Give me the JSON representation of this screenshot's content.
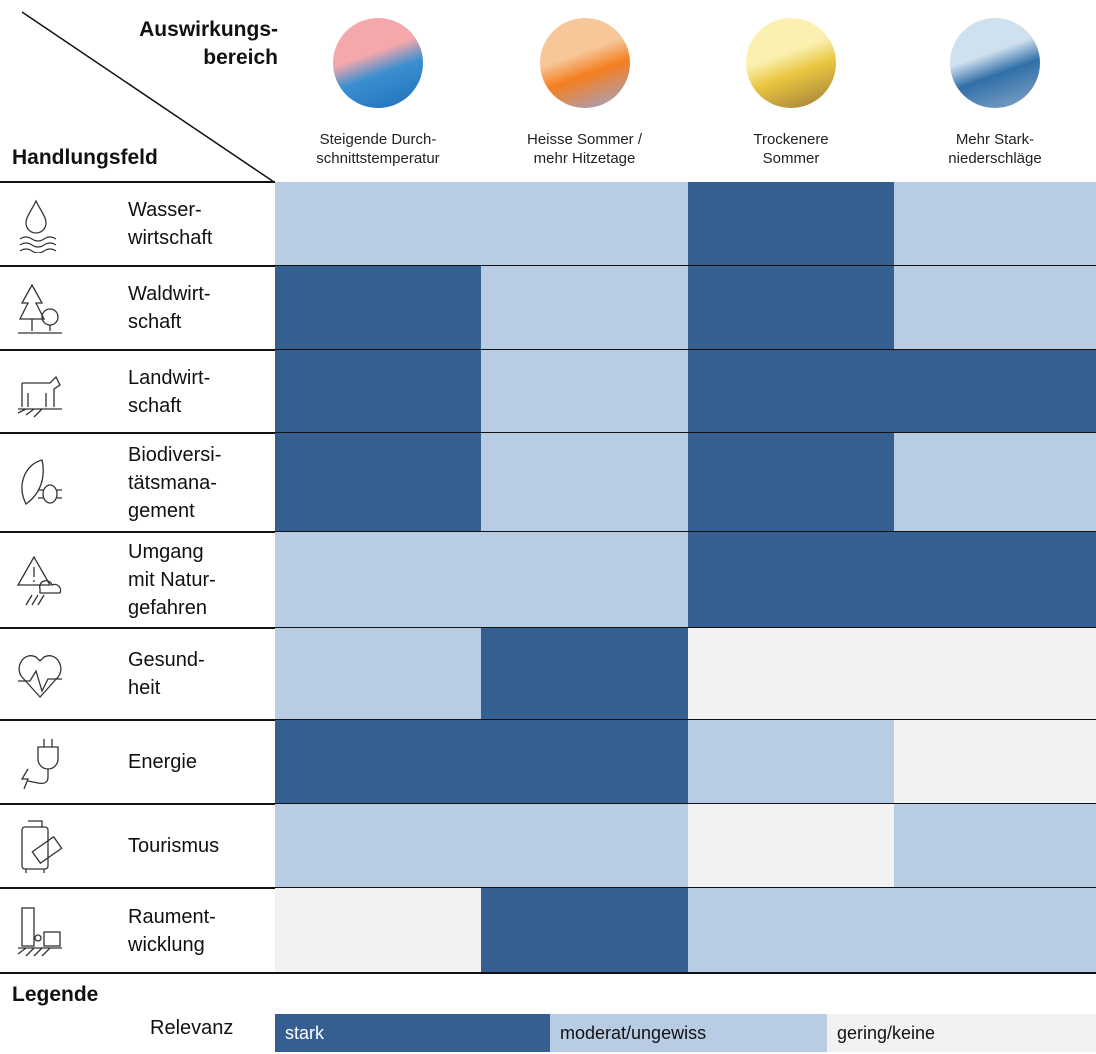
{
  "header": {
    "column_axis": [
      "Auswirkungs-",
      "bereich"
    ],
    "row_axis": "Handlungsfeld"
  },
  "columns": [
    {
      "label": [
        "Steigende Durch-",
        "schnittstemperatur"
      ]
    },
    {
      "label": [
        "Heisse Sommer /",
        "mehr Hitzetage"
      ]
    },
    {
      "label": [
        "Trockenere",
        "Sommer"
      ]
    },
    {
      "label": [
        "Mehr Stark-",
        "niederschläge"
      ]
    }
  ],
  "rows": [
    {
      "label": [
        "Wasser-",
        "wirtschaft"
      ],
      "cells": [
        "#b8cce4",
        "#b8cce4",
        "#365f91",
        "#b8cce4"
      ]
    },
    {
      "label": [
        "Waldwirt-",
        "schaft"
      ],
      "cells": [
        "#365f91",
        "#b8cce4",
        "#365f91",
        "#b8cce4"
      ]
    },
    {
      "label": [
        "Landwirt-",
        "schaft"
      ],
      "cells": [
        "#365f91",
        "#b8cce4",
        "#365f91",
        "#365f91"
      ]
    },
    {
      "label": [
        "Biodiversi-",
        "tätsmana-",
        "gement"
      ],
      "cells": [
        "#365f91",
        "#b8cce4",
        "#365f91",
        "#b8cce4"
      ]
    },
    {
      "label": [
        "Umgang",
        "mit Natur-",
        "gefahren"
      ],
      "cells": [
        "#b8cce4",
        "#b8cce4",
        "#365f91",
        "#365f91"
      ]
    },
    {
      "label": [
        "Gesund-",
        "heit"
      ],
      "cells": [
        "#b8cce4",
        "#365f91",
        "#f2f2f2",
        "#f2f2f2"
      ]
    },
    {
      "label": [
        "Energie"
      ],
      "cells": [
        "#365f91",
        "#365f91",
        "#b8cce4",
        "#f2f2f2"
      ]
    },
    {
      "label": [
        "Tourismus"
      ],
      "cells": [
        "#b8cce4",
        "#b8cce4",
        "#f2f2f2",
        "#b8cce4"
      ]
    },
    {
      "label": [
        "Raument-",
        "wicklung"
      ],
      "cells": [
        "#f2f2f2",
        "#365f91",
        "#b8cce4",
        "#b8cce4"
      ]
    }
  ],
  "legend": {
    "title": "Legende",
    "label": "Relevanz",
    "items": [
      {
        "label": "stark",
        "color": "#365f91"
      },
      {
        "label": "moderat/ungewiss",
        "color": "#b8cce4"
      },
      {
        "label": "gering/keine",
        "color": "#f2f2f2"
      }
    ]
  }
}
